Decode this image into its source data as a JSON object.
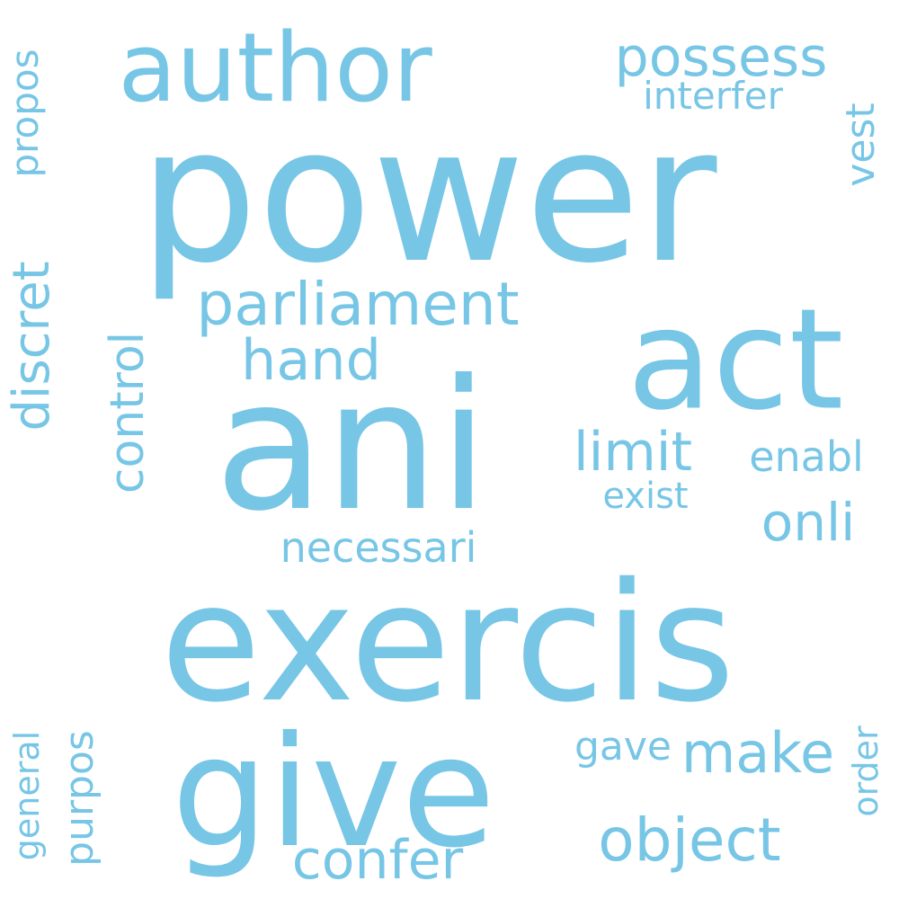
{
  "color": "#77c6e6",
  "background": "#ffffff",
  "words": {
    "power": "power",
    "exercis": "exercis",
    "ani": "ani",
    "give": "give",
    "act": "act",
    "author": "author",
    "parliament": "parliament",
    "possess": "possess",
    "interfer": "interfer",
    "hand": "hand",
    "limit": "limit",
    "enabl": "enabl",
    "exist": "exist",
    "onli": "onli",
    "necessari": "necessari",
    "control": "control",
    "discret": "discret",
    "propos": "propos",
    "vest": "vest",
    "make": "make",
    "gave": "gave",
    "object": "object",
    "confer": "confer",
    "purpos": "purpos",
    "general": "general",
    "order": "order"
  }
}
